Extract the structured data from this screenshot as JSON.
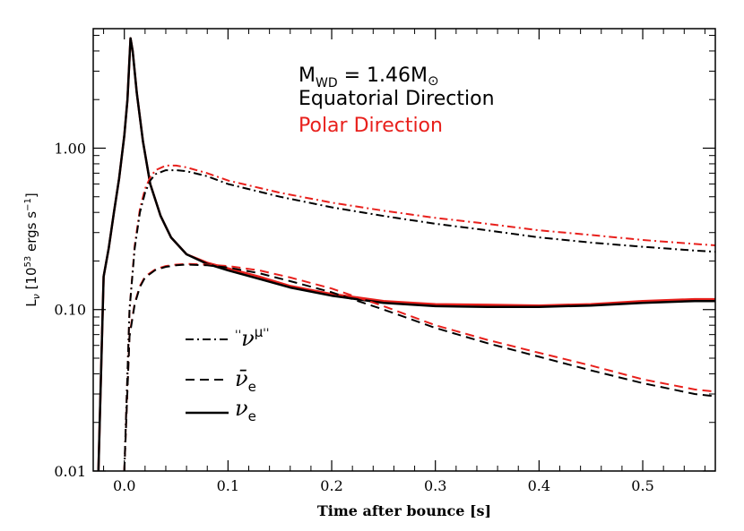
{
  "chart_data": {
    "type": "line",
    "title": "",
    "xlabel": "Time after bounce [s]",
    "ylabel": {
      "main": "L",
      "nu": "ν",
      "open": " [10",
      "exp": "53",
      "mid": " ergs s",
      "exp2": "−1",
      "close": "]"
    },
    "xlim": [
      -0.03,
      0.57
    ],
    "ylim": [
      0.01,
      5.5
    ],
    "yscale": "log",
    "grid": false,
    "xticks": [
      0.0,
      0.1,
      0.2,
      0.3,
      0.4,
      0.5
    ],
    "xtick_labels": [
      "0.0",
      "0.1",
      "0.2",
      "0.3",
      "0.4",
      "0.5"
    ],
    "yticks": [
      0.01,
      0.1,
      1.0
    ],
    "ytick_labels": [
      "0.01",
      "0.10",
      "1.00"
    ],
    "annotations": {
      "mass_main": "M",
      "mass_sub": "WD",
      "mass_value": " = 1.46M",
      "mass_sun": "⊙",
      "equatorial": "Equatorial Direction",
      "polar": "Polar Direction"
    },
    "legend": {
      "placement": "lower-left",
      "items": [
        {
          "style": "dash-dot",
          "quote_open": "''",
          "symbol": "ν",
          "sub": "μ",
          "quote_close": "''"
        },
        {
          "style": "dashed",
          "symbol": "ν̄",
          "sub": "e"
        },
        {
          "style": "solid",
          "symbol": "ν",
          "sub": "e"
        }
      ]
    },
    "colors": {
      "equatorial": "#000000",
      "polar": "#e8201c"
    },
    "series": [
      {
        "flavor": "nu_e",
        "direction": "polar",
        "style": "solid",
        "x": [
          -0.025,
          -0.02,
          -0.015,
          -0.01,
          -0.005,
          0.0,
          0.003,
          0.006,
          0.008,
          0.012,
          0.018,
          0.025,
          0.035,
          0.045,
          0.06,
          0.08,
          0.1,
          0.13,
          0.16,
          0.2,
          0.25,
          0.3,
          0.35,
          0.4,
          0.45,
          0.5,
          0.55,
          0.57
        ],
        "y": [
          0.01,
          0.16,
          0.24,
          0.4,
          0.65,
          1.2,
          2.0,
          4.8,
          4.0,
          2.2,
          1.1,
          0.6,
          0.38,
          0.28,
          0.22,
          0.195,
          0.18,
          0.16,
          0.14,
          0.125,
          0.113,
          0.108,
          0.107,
          0.106,
          0.108,
          0.113,
          0.116,
          0.116
        ]
      },
      {
        "flavor": "nu_e",
        "direction": "equatorial",
        "style": "solid",
        "x": [
          -0.025,
          -0.02,
          -0.015,
          -0.01,
          -0.005,
          0.0,
          0.003,
          0.006,
          0.008,
          0.012,
          0.018,
          0.025,
          0.035,
          0.045,
          0.06,
          0.08,
          0.1,
          0.13,
          0.16,
          0.2,
          0.25,
          0.3,
          0.35,
          0.4,
          0.45,
          0.5,
          0.55,
          0.57
        ],
        "y": [
          0.01,
          0.16,
          0.24,
          0.4,
          0.65,
          1.2,
          2.0,
          4.8,
          4.0,
          2.2,
          1.1,
          0.6,
          0.38,
          0.28,
          0.22,
          0.192,
          0.175,
          0.155,
          0.137,
          0.122,
          0.11,
          0.105,
          0.104,
          0.104,
          0.106,
          0.11,
          0.113,
          0.113
        ]
      },
      {
        "flavor": "anti_nu_e",
        "direction": "polar",
        "style": "dashed",
        "x": [
          0.0,
          0.005,
          0.01,
          0.015,
          0.02,
          0.03,
          0.04,
          0.05,
          0.06,
          0.08,
          0.1,
          0.13,
          0.16,
          0.2,
          0.25,
          0.3,
          0.35,
          0.4,
          0.45,
          0.5,
          0.55,
          0.57
        ],
        "y": [
          0.01,
          0.07,
          0.11,
          0.14,
          0.16,
          0.178,
          0.186,
          0.19,
          0.192,
          0.19,
          0.186,
          0.175,
          0.158,
          0.135,
          0.105,
          0.08,
          0.065,
          0.054,
          0.045,
          0.037,
          0.032,
          0.031
        ]
      },
      {
        "flavor": "anti_nu_e",
        "direction": "equatorial",
        "style": "dashed",
        "x": [
          0.0,
          0.005,
          0.01,
          0.015,
          0.02,
          0.03,
          0.04,
          0.05,
          0.06,
          0.08,
          0.1,
          0.13,
          0.16,
          0.2,
          0.25,
          0.3,
          0.35,
          0.4,
          0.45,
          0.5,
          0.55,
          0.57
        ],
        "y": [
          0.01,
          0.068,
          0.108,
          0.138,
          0.158,
          0.176,
          0.184,
          0.188,
          0.19,
          0.188,
          0.182,
          0.168,
          0.15,
          0.128,
          0.1,
          0.077,
          0.062,
          0.051,
          0.042,
          0.035,
          0.03,
          0.029
        ]
      },
      {
        "flavor": "nu_mu",
        "direction": "polar",
        "style": "dash-dot",
        "x": [
          0.0,
          0.005,
          0.01,
          0.015,
          0.02,
          0.025,
          0.03,
          0.04,
          0.05,
          0.06,
          0.08,
          0.1,
          0.15,
          0.2,
          0.25,
          0.3,
          0.35,
          0.4,
          0.45,
          0.5,
          0.55,
          0.57
        ],
        "y": [
          0.01,
          0.1,
          0.25,
          0.42,
          0.56,
          0.66,
          0.73,
          0.78,
          0.78,
          0.76,
          0.7,
          0.63,
          0.53,
          0.46,
          0.41,
          0.37,
          0.34,
          0.31,
          0.29,
          0.27,
          0.255,
          0.25
        ]
      },
      {
        "flavor": "nu_mu",
        "direction": "equatorial",
        "style": "dash-dot",
        "x": [
          0.0,
          0.005,
          0.01,
          0.015,
          0.02,
          0.025,
          0.03,
          0.04,
          0.05,
          0.06,
          0.08,
          0.1,
          0.15,
          0.2,
          0.25,
          0.3,
          0.35,
          0.4,
          0.45,
          0.5,
          0.55,
          0.57
        ],
        "y": [
          0.01,
          0.1,
          0.24,
          0.4,
          0.53,
          0.63,
          0.69,
          0.73,
          0.73,
          0.72,
          0.67,
          0.6,
          0.5,
          0.43,
          0.38,
          0.34,
          0.31,
          0.28,
          0.26,
          0.245,
          0.232,
          0.228
        ]
      }
    ]
  }
}
